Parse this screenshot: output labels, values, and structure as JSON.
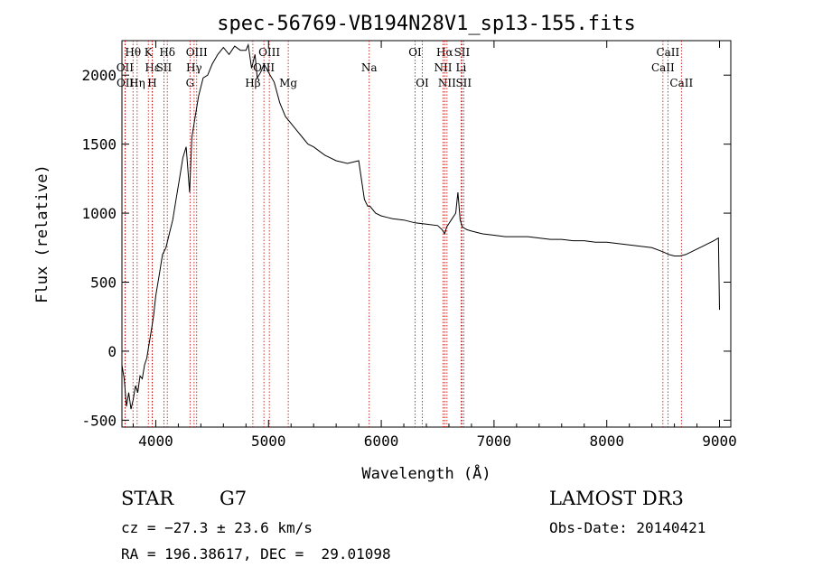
{
  "chart_data": {
    "type": "line",
    "title": "spec-56769-VB194N28V1_sp13-155.fits",
    "xlabel": "Wavelength (Å)",
    "ylabel": "Flux (relative)",
    "xlim": [
      3700,
      9100
    ],
    "ylim": [
      -550,
      2250
    ],
    "xticks": [
      4000,
      5000,
      6000,
      7000,
      8000,
      9000
    ],
    "yticks": [
      -500,
      0,
      500,
      1000,
      1500,
      2000
    ],
    "grid": false,
    "line_color": "#000000",
    "marker_color": "#c00000",
    "x": [
      3700,
      3720,
      3740,
      3760,
      3780,
      3800,
      3820,
      3840,
      3860,
      3880,
      3900,
      3920,
      3940,
      3960,
      3980,
      4000,
      4030,
      4060,
      4090,
      4120,
      4150,
      4180,
      4210,
      4240,
      4270,
      4300,
      4320,
      4350,
      4380,
      4420,
      4460,
      4500,
      4550,
      4600,
      4650,
      4700,
      4750,
      4800,
      4820,
      4850,
      4880,
      4900,
      4930,
      4960,
      5000,
      5050,
      5100,
      5150,
      5200,
      5250,
      5300,
      5350,
      5400,
      5450,
      5500,
      5550,
      5600,
      5650,
      5700,
      5750,
      5800,
      5850,
      5880,
      5900,
      5950,
      6000,
      6050,
      6100,
      6200,
      6300,
      6400,
      6500,
      6540,
      6563,
      6580,
      6620,
      6660,
      6680,
      6690,
      6700,
      6720,
      6760,
      6800,
      6850,
      6900,
      7000,
      7100,
      7200,
      7300,
      7400,
      7500,
      7600,
      7700,
      7800,
      7900,
      8000,
      8100,
      8200,
      8300,
      8400,
      8500,
      8550,
      8600,
      8650,
      8700,
      8750,
      8800,
      8850,
      8900,
      8950,
      8990,
      9000
    ],
    "y": [
      -100,
      -200,
      -400,
      -300,
      -420,
      -350,
      -250,
      -300,
      -180,
      -200,
      -100,
      -50,
      50,
      150,
      250,
      400,
      550,
      700,
      750,
      850,
      950,
      1100,
      1250,
      1400,
      1480,
      1150,
      1550,
      1700,
      1850,
      1980,
      2000,
      2080,
      2150,
      2200,
      2150,
      2210,
      2180,
      2180,
      2220,
      2050,
      2150,
      1980,
      2020,
      2080,
      2020,
      1950,
      1800,
      1700,
      1650,
      1600,
      1550,
      1500,
      1480,
      1450,
      1420,
      1400,
      1380,
      1370,
      1360,
      1370,
      1380,
      1100,
      1050,
      1050,
      1000,
      980,
      970,
      960,
      950,
      930,
      920,
      910,
      880,
      850,
      900,
      950,
      1000,
      1150,
      1050,
      950,
      900,
      880,
      870,
      860,
      850,
      840,
      830,
      830,
      830,
      820,
      810,
      810,
      800,
      800,
      790,
      790,
      780,
      770,
      760,
      750,
      720,
      700,
      690,
      690,
      700,
      720,
      740,
      760,
      780,
      800,
      820,
      300
    ],
    "lines": [
      {
        "label": "Hθ",
        "wavelength": 3798,
        "row": 1
      },
      {
        "label": "OII",
        "wavelength": 3727,
        "row": 2
      },
      {
        "label": "OII",
        "wavelength": 3729,
        "row": 3
      },
      {
        "label": "K",
        "wavelength": 3934,
        "row": 1
      },
      {
        "label": "Hε",
        "wavelength": 3970,
        "row": 2
      },
      {
        "label": "Hη",
        "wavelength": 3835,
        "row": 3
      },
      {
        "label": "Hδ",
        "wavelength": 4102,
        "row": 1
      },
      {
        "label": "SII",
        "wavelength": 4072,
        "row": 2
      },
      {
        "label": "H",
        "wavelength": 3968,
        "row": 3
      },
      {
        "label": "OIII",
        "wavelength": 4363,
        "row": 1
      },
      {
        "label": "Hγ",
        "wavelength": 4340,
        "row": 2
      },
      {
        "label": "G",
        "wavelength": 4304,
        "row": 3
      },
      {
        "label": "OIII",
        "wavelength": 5007,
        "row": 1
      },
      {
        "label": "OIII",
        "wavelength": 4959,
        "row": 2
      },
      {
        "label": "Hβ",
        "wavelength": 4861,
        "row": 3
      },
      {
        "label": "Mg",
        "wavelength": 5175,
        "row": 3
      },
      {
        "label": "Na",
        "wavelength": 5893,
        "row": 2
      },
      {
        "label": "OI",
        "wavelength": 6300,
        "row": 1
      },
      {
        "label": "OI",
        "wavelength": 6364,
        "row": 3
      },
      {
        "label": "Hα",
        "wavelength": 6563,
        "row": 1
      },
      {
        "label": "NII",
        "wavelength": 6548,
        "row": 2
      },
      {
        "label": "NII",
        "wavelength": 6583,
        "row": 3
      },
      {
        "label": "SII",
        "wavelength": 6716,
        "row": 1
      },
      {
        "label": "Li",
        "wavelength": 6708,
        "row": 2
      },
      {
        "label": "SII",
        "wavelength": 6731,
        "row": 3
      },
      {
        "label": "CaII",
        "wavelength": 8542,
        "row": 1
      },
      {
        "label": "CaII",
        "wavelength": 8498,
        "row": 2
      },
      {
        "label": "CaII",
        "wavelength": 8662,
        "row": 3
      }
    ]
  },
  "info": {
    "class_type": "STAR",
    "subclass": "G7",
    "survey": "LAMOST DR3",
    "cz": "cz = −27.3 ± 23.6 km/s",
    "obs_date": "Obs-Date: 20140421",
    "radec": "RA = 196.38617, DEC =  29.01098"
  }
}
